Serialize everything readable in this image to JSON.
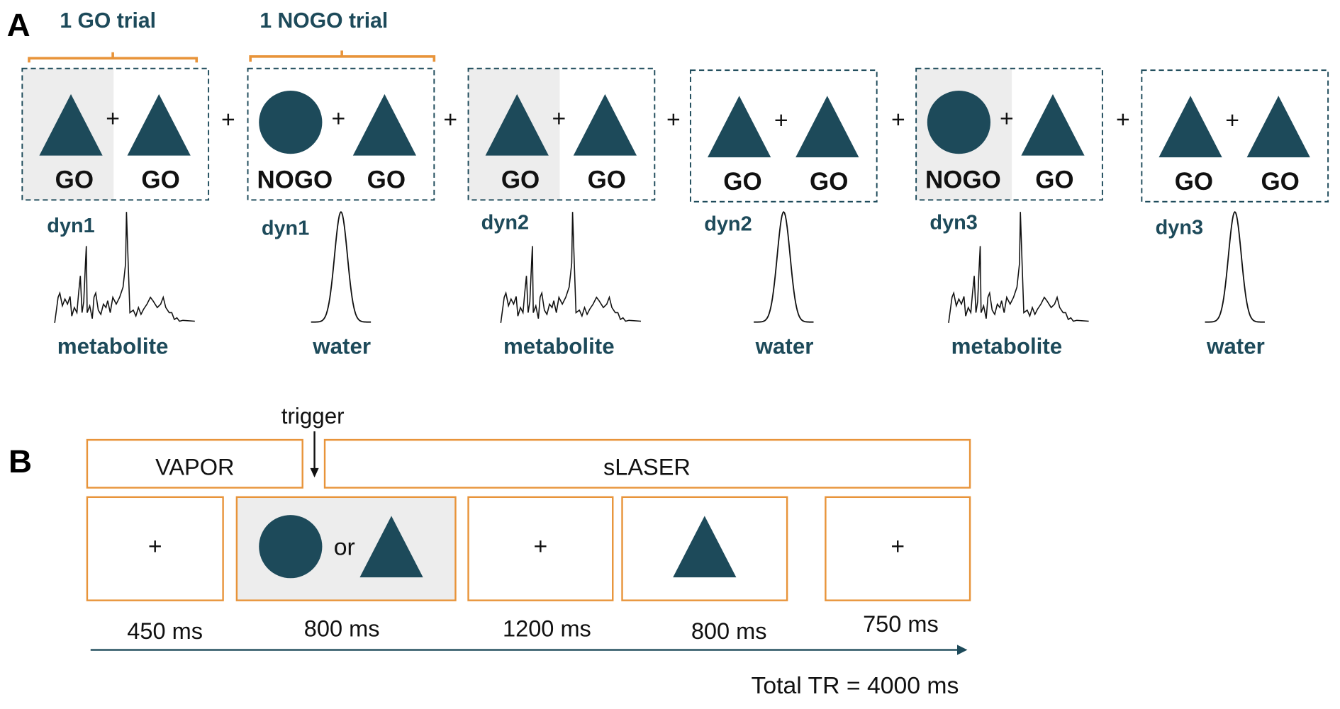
{
  "colors": {
    "teal": "#1d4a5a",
    "orange": "#e8943a",
    "highlight": "#ededed"
  },
  "panel_a": {
    "label": "A",
    "brackets": [
      {
        "label": "1 GO trial"
      },
      {
        "label": "1 NOGO trial"
      }
    ],
    "separator": "+",
    "blocks": [
      {
        "stimuli": [
          "triangle",
          "triangle"
        ],
        "labels": [
          "GO",
          "GO"
        ],
        "first_highlighted": true,
        "dyn": "dyn1",
        "signal": "metabolite"
      },
      {
        "stimuli": [
          "circle",
          "triangle"
        ],
        "labels": [
          "NOGO",
          "GO"
        ],
        "first_highlighted": false,
        "dyn": "dyn1",
        "signal": "water"
      },
      {
        "stimuli": [
          "triangle",
          "triangle"
        ],
        "labels": [
          "GO",
          "GO"
        ],
        "first_highlighted": true,
        "dyn": "dyn2",
        "signal": "metabolite"
      },
      {
        "stimuli": [
          "triangle",
          "triangle"
        ],
        "labels": [
          "GO",
          "GO"
        ],
        "first_highlighted": false,
        "dyn": "dyn2",
        "signal": "water"
      },
      {
        "stimuli": [
          "circle",
          "triangle"
        ],
        "labels": [
          "NOGO",
          "GO"
        ],
        "first_highlighted": true,
        "dyn": "dyn3",
        "signal": "metabolite"
      },
      {
        "stimuli": [
          "triangle",
          "triangle"
        ],
        "labels": [
          "GO",
          "GO"
        ],
        "first_highlighted": false,
        "dyn": "dyn3",
        "signal": "water"
      }
    ]
  },
  "panel_b": {
    "label": "B",
    "trigger": "trigger",
    "sequences": [
      "VAPOR",
      "sLASER"
    ],
    "frames": [
      {
        "content": "fixation",
        "symbol": "+",
        "duration": "450 ms"
      },
      {
        "content": "circle-or-triangle",
        "or_label": "or",
        "duration": "800 ms",
        "highlighted": true
      },
      {
        "content": "fixation",
        "symbol": "+",
        "duration": "1200 ms"
      },
      {
        "content": "triangle",
        "duration": "800 ms"
      },
      {
        "content": "fixation",
        "symbol": "+",
        "duration": "750 ms"
      }
    ],
    "total": "Total TR = 4000 ms"
  }
}
